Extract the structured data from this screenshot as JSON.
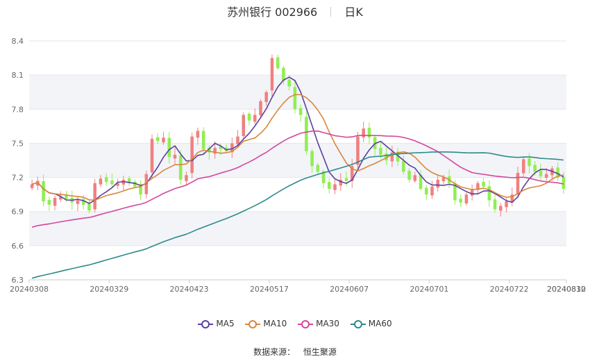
{
  "title": {
    "name": "苏州银行 002966",
    "period": "日K"
  },
  "legend": [
    {
      "label": "MA5",
      "color": "#5b3f9e"
    },
    {
      "label": "MA10",
      "color": "#d9863b"
    },
    {
      "label": "MA30",
      "color": "#d3479b"
    },
    {
      "label": "MA60",
      "color": "#2d8a8a"
    }
  ],
  "source": {
    "label": "数据来源：",
    "value": "恒生聚源"
  },
  "colors": {
    "up": "#f08080",
    "down": "#90ee52",
    "grid": "#e6e6e6",
    "band": "#f2f4f8",
    "axis_text": "#666666"
  },
  "chart_data": {
    "type": "candlestick",
    "ylim": [
      6.3,
      8.4
    ],
    "y_ticks": [
      "6.3",
      "6.6",
      "6.9",
      "7.2",
      "7.5",
      "7.8",
      "8.1",
      "8.4"
    ],
    "x_ticks": [
      {
        "label": "20240308",
        "index": 0
      },
      {
        "label": "20240329",
        "index": 14
      },
      {
        "label": "20240423",
        "index": 28
      },
      {
        "label": "20240517",
        "index": 42
      },
      {
        "label": "20240607",
        "index": 56
      },
      {
        "label": "20240701",
        "index": 70
      },
      {
        "label": "20240722",
        "index": 84
      },
      {
        "label": "20240812",
        "index": 98
      },
      {
        "label": "20240830",
        "index": 112
      }
    ],
    "close": [
      7.14,
      7.17,
      6.99,
      6.96,
      7.02,
      7.03,
      7.01,
      6.98,
      7.0,
      6.96,
      6.91,
      7.15,
      7.19,
      7.16,
      7.14,
      7.15,
      7.18,
      7.15,
      7.12,
      7.05,
      7.23,
      7.54,
      7.52,
      7.55,
      7.38,
      7.4,
      7.18,
      7.22,
      7.56,
      7.61,
      7.45,
      7.42,
      7.46,
      7.45,
      7.43,
      7.5,
      7.56,
      7.75,
      7.7,
      7.75,
      7.87,
      7.95,
      8.25,
      8.16,
      8.05,
      8.0,
      7.8,
      7.75,
      7.43,
      7.3,
      7.25,
      7.15,
      7.1,
      7.14,
      7.18,
      7.17,
      7.3,
      7.56,
      7.63,
      7.55,
      7.45,
      7.4,
      7.35,
      7.42,
      7.34,
      7.25,
      7.18,
      7.22,
      7.1,
      7.05,
      7.12,
      7.18,
      7.2,
      7.15,
      7.0,
      6.98,
      7.05,
      7.1,
      7.15,
      7.12,
      7.0,
      6.92,
      6.95,
      6.99,
      7.05,
      7.24,
      7.36,
      7.3,
      7.25,
      7.21,
      7.23,
      7.28,
      7.2,
      7.1
    ],
    "series": [
      {
        "name": "MA5"
      },
      {
        "name": "MA10"
      },
      {
        "name": "MA30"
      },
      {
        "name": "MA60"
      }
    ]
  }
}
